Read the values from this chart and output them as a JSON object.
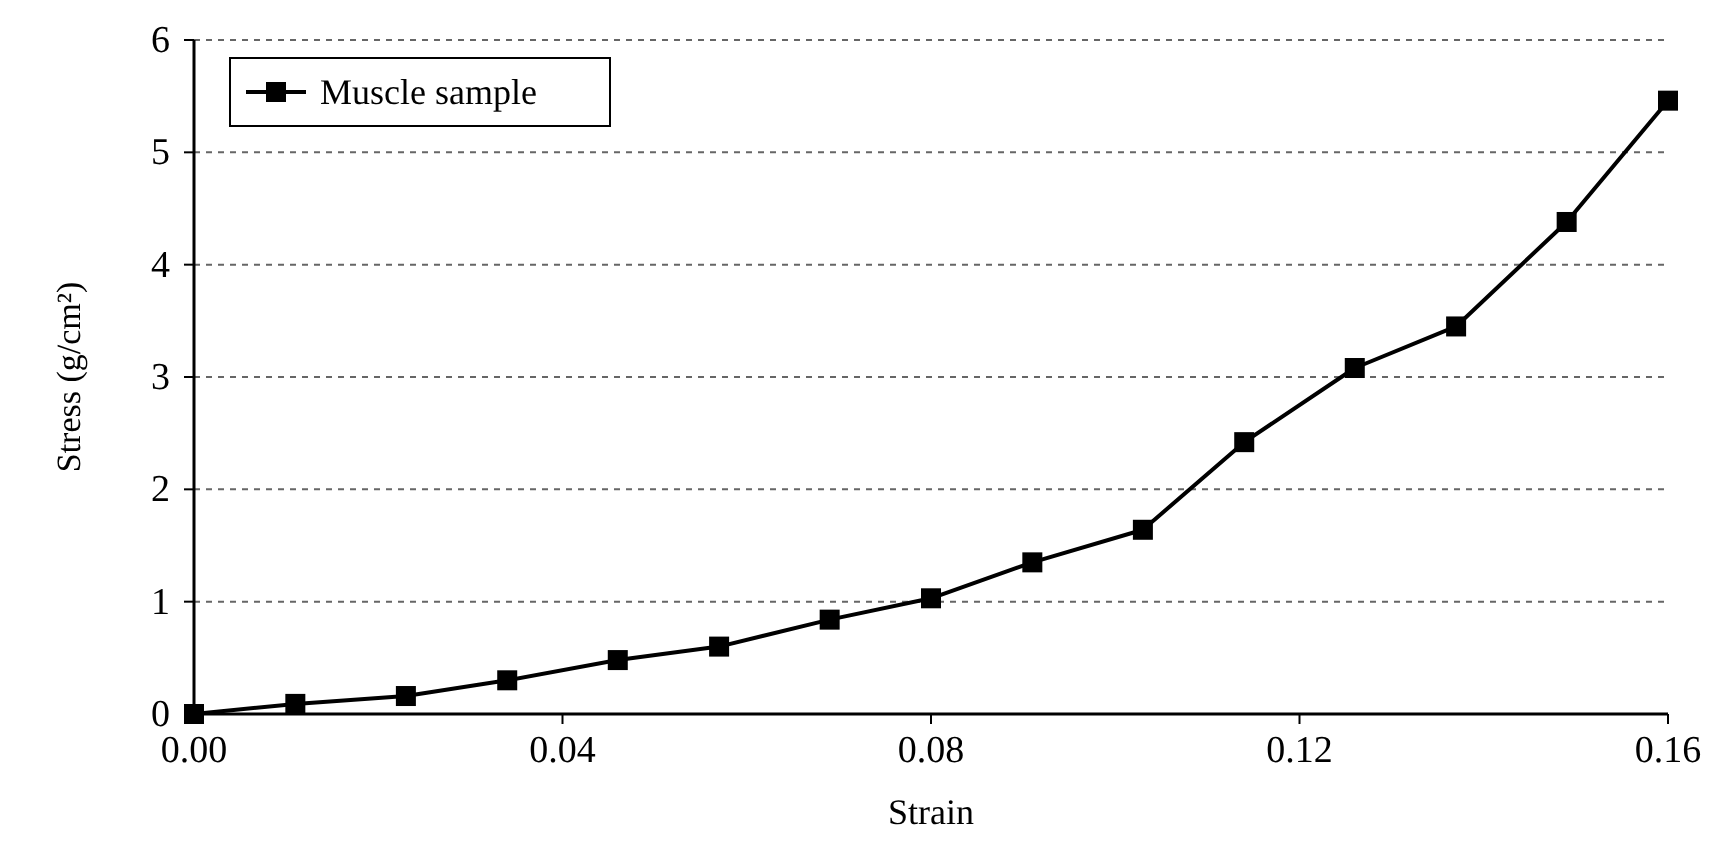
{
  "chart_data": {
    "type": "line",
    "xlabel": "Strain",
    "ylabel": "Stress (g/cm²)",
    "x": [
      0,
      0.011,
      0.023,
      0.034,
      0.046,
      0.057,
      0.069,
      0.08,
      0.091,
      0.103,
      0.114,
      0.126,
      0.137,
      0.149,
      0.16
    ],
    "series": [
      {
        "name": "Muscle sample",
        "color": "#000000",
        "values": [
          0,
          0.09,
          0.16,
          0.3,
          0.48,
          0.6,
          0.84,
          1.03,
          1.35,
          1.64,
          2.42,
          3.08,
          3.45,
          4.38,
          5.46
        ]
      }
    ],
    "xlim": [
      0,
      0.16
    ],
    "xticks": [
      {
        "value": 0,
        "label": "0.00"
      },
      0.04,
      0.08,
      0.12,
      0.16
    ],
    "ylim": [
      0,
      6
    ],
    "yticks": [
      0,
      1,
      2,
      3,
      4,
      5,
      6
    ],
    "grid": "y",
    "legend": "top left",
    "marker": "square",
    "line_style": "solid"
  }
}
